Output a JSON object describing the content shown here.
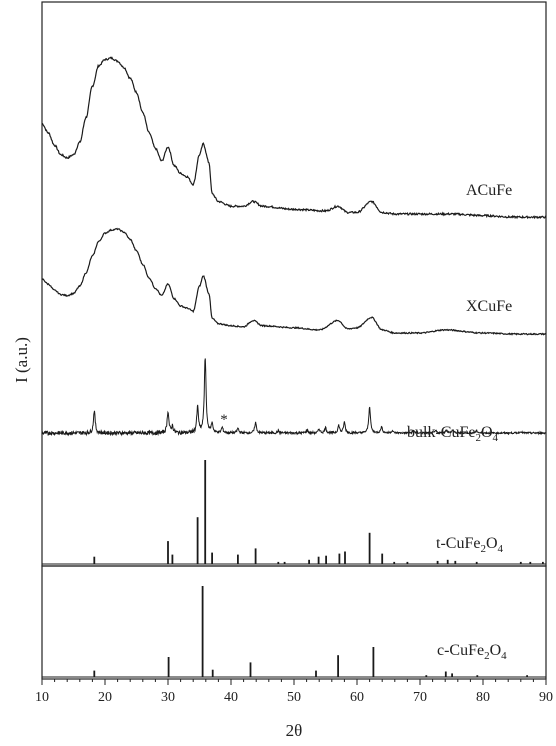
{
  "chart_data": {
    "type": "line",
    "xlabel": "2θ",
    "ylabel": "I (a.u.)",
    "xlim": [
      10,
      90
    ],
    "x_ticks": [
      10,
      20,
      30,
      40,
      50,
      60,
      70,
      80,
      90
    ],
    "grid": false,
    "colors": {
      "line": "#1a1a1a",
      "axis": "#222222",
      "background": "#ffffff"
    },
    "series": [
      {
        "name": "ACuFe",
        "kind": "broad",
        "points": [
          [
            10,
            0.58
          ],
          [
            11,
            0.52
          ],
          [
            12,
            0.44
          ],
          [
            13,
            0.38
          ],
          [
            14,
            0.36
          ],
          [
            15,
            0.38
          ],
          [
            16,
            0.46
          ],
          [
            17,
            0.62
          ],
          [
            18,
            0.82
          ],
          [
            19,
            0.95
          ],
          [
            20,
            0.99
          ],
          [
            21,
            1.0
          ],
          [
            22,
            0.98
          ],
          [
            23,
            0.94
          ],
          [
            24,
            0.87
          ],
          [
            25,
            0.78
          ],
          [
            26,
            0.65
          ],
          [
            27,
            0.52
          ],
          [
            28,
            0.42
          ],
          [
            29,
            0.34
          ],
          [
            30,
            0.43
          ],
          [
            31,
            0.31
          ],
          [
            32,
            0.26
          ],
          [
            33,
            0.24
          ],
          [
            34,
            0.19
          ],
          [
            35,
            0.38
          ],
          [
            35.6,
            0.45
          ],
          [
            36.5,
            0.33
          ],
          [
            37,
            0.13
          ],
          [
            38,
            0.08
          ],
          [
            40,
            0.05
          ],
          [
            42,
            0.05
          ],
          [
            43.5,
            0.08
          ],
          [
            45,
            0.05
          ],
          [
            50,
            0.03
          ],
          [
            55,
            0.02
          ],
          [
            57,
            0.05
          ],
          [
            58.5,
            0.01
          ],
          [
            60,
            0.01
          ],
          [
            62.3,
            0.08
          ],
          [
            64,
            0.01
          ],
          [
            66,
            0.0
          ],
          [
            70,
            0.0
          ],
          [
            75,
            0.0
          ],
          [
            80,
            -0.01
          ],
          [
            85,
            -0.02
          ],
          [
            90,
            -0.02
          ]
        ]
      },
      {
        "name": "XCuFe",
        "kind": "broad",
        "points": [
          [
            10,
            0.52
          ],
          [
            11,
            0.47
          ],
          [
            12,
            0.41
          ],
          [
            13,
            0.37
          ],
          [
            14,
            0.36
          ],
          [
            15,
            0.38
          ],
          [
            16,
            0.45
          ],
          [
            17,
            0.58
          ],
          [
            18,
            0.74
          ],
          [
            19,
            0.88
          ],
          [
            20,
            0.96
          ],
          [
            21,
            0.99
          ],
          [
            22,
            1.0
          ],
          [
            23,
            0.97
          ],
          [
            24,
            0.9
          ],
          [
            25,
            0.79
          ],
          [
            26,
            0.66
          ],
          [
            27,
            0.53
          ],
          [
            28,
            0.43
          ],
          [
            29,
            0.36
          ],
          [
            30,
            0.47
          ],
          [
            31,
            0.33
          ],
          [
            32,
            0.26
          ],
          [
            33,
            0.24
          ],
          [
            34,
            0.21
          ],
          [
            35,
            0.45
          ],
          [
            35.6,
            0.55
          ],
          [
            36.5,
            0.38
          ],
          [
            37,
            0.14
          ],
          [
            38,
            0.09
          ],
          [
            40,
            0.07
          ],
          [
            42,
            0.06
          ],
          [
            43.5,
            0.12
          ],
          [
            45,
            0.07
          ],
          [
            50,
            0.05
          ],
          [
            54,
            0.03
          ],
          [
            57,
            0.12
          ],
          [
            58.5,
            0.04
          ],
          [
            60,
            0.05
          ],
          [
            62.3,
            0.15
          ],
          [
            64,
            0.03
          ],
          [
            66,
            0.0
          ],
          [
            70,
            0.0
          ],
          [
            74,
            0.03
          ],
          [
            80,
            0.0
          ],
          [
            85,
            -0.01
          ],
          [
            90,
            -0.01
          ]
        ]
      },
      {
        "name": "bulk-CuFe2O4",
        "kind": "peaks",
        "baseline_noise": true,
        "peaks": [
          [
            18.3,
            0.3
          ],
          [
            30.0,
            0.29
          ],
          [
            30.7,
            0.09
          ],
          [
            34.7,
            0.34
          ],
          [
            35.9,
            1.0
          ],
          [
            37.0,
            0.12
          ],
          [
            38.6,
            0.07
          ],
          [
            41.1,
            0.06
          ],
          [
            43.9,
            0.14
          ],
          [
            47.5,
            0.03
          ],
          [
            52.1,
            0.04
          ],
          [
            54.0,
            0.05
          ],
          [
            55.0,
            0.07
          ],
          [
            57.1,
            0.1
          ],
          [
            58.0,
            0.14
          ],
          [
            62.0,
            0.35
          ],
          [
            63.9,
            0.08
          ],
          [
            65.6,
            0.03
          ],
          [
            69.0,
            0.03
          ],
          [
            72.5,
            0.03
          ],
          [
            74.2,
            0.04
          ],
          [
            75.2,
            0.04
          ],
          [
            79.0,
            0.03
          ],
          [
            86.0,
            0.02
          ]
        ],
        "annotation": {
          "text": "*",
          "x": 38.6
        }
      },
      {
        "name": "t-CuFe2O4",
        "kind": "sticks",
        "peaks": [
          [
            18.3,
            0.07
          ],
          [
            30.0,
            0.22
          ],
          [
            30.7,
            0.09
          ],
          [
            34.7,
            0.45
          ],
          [
            35.9,
            1.0
          ],
          [
            37.0,
            0.11
          ],
          [
            41.1,
            0.09
          ],
          [
            43.9,
            0.15
          ],
          [
            47.5,
            0.02
          ],
          [
            48.5,
            0.02
          ],
          [
            52.4,
            0.04
          ],
          [
            53.9,
            0.07
          ],
          [
            55.1,
            0.08
          ],
          [
            57.2,
            0.1
          ],
          [
            58.1,
            0.12
          ],
          [
            62.0,
            0.3
          ],
          [
            64.0,
            0.1
          ],
          [
            65.9,
            0.02
          ],
          [
            68.0,
            0.02
          ],
          [
            72.8,
            0.03
          ],
          [
            74.4,
            0.04
          ],
          [
            75.6,
            0.03
          ],
          [
            79.0,
            0.02
          ],
          [
            86.0,
            0.02
          ],
          [
            87.5,
            0.02
          ],
          [
            89.5,
            0.02
          ]
        ]
      },
      {
        "name": "c-CuFe2O4",
        "kind": "sticks",
        "peaks": [
          [
            18.3,
            0.07
          ],
          [
            30.1,
            0.22
          ],
          [
            35.5,
            1.0
          ],
          [
            37.1,
            0.08
          ],
          [
            43.1,
            0.16
          ],
          [
            53.5,
            0.07
          ],
          [
            57.0,
            0.24
          ],
          [
            62.6,
            0.33
          ],
          [
            71.0,
            0.02
          ],
          [
            74.1,
            0.06
          ],
          [
            75.1,
            0.04
          ],
          [
            79.1,
            0.02
          ],
          [
            87.0,
            0.02
          ]
        ]
      }
    ]
  },
  "panel_labels": {
    "acufe": "ACuFe",
    "xcufe": "XCuFe",
    "bulk_prefix": "bulk-CuFe",
    "bulk_sub1": "2",
    "bulk_mid": "O",
    "bulk_sub2": "4",
    "t_prefix": "t-CuFe",
    "t_sub1": "2",
    "t_mid": "O",
    "t_sub2": "4",
    "c_prefix": "c-CuFe",
    "c_sub1": "2",
    "c_mid": "O",
    "c_sub2": "4"
  }
}
